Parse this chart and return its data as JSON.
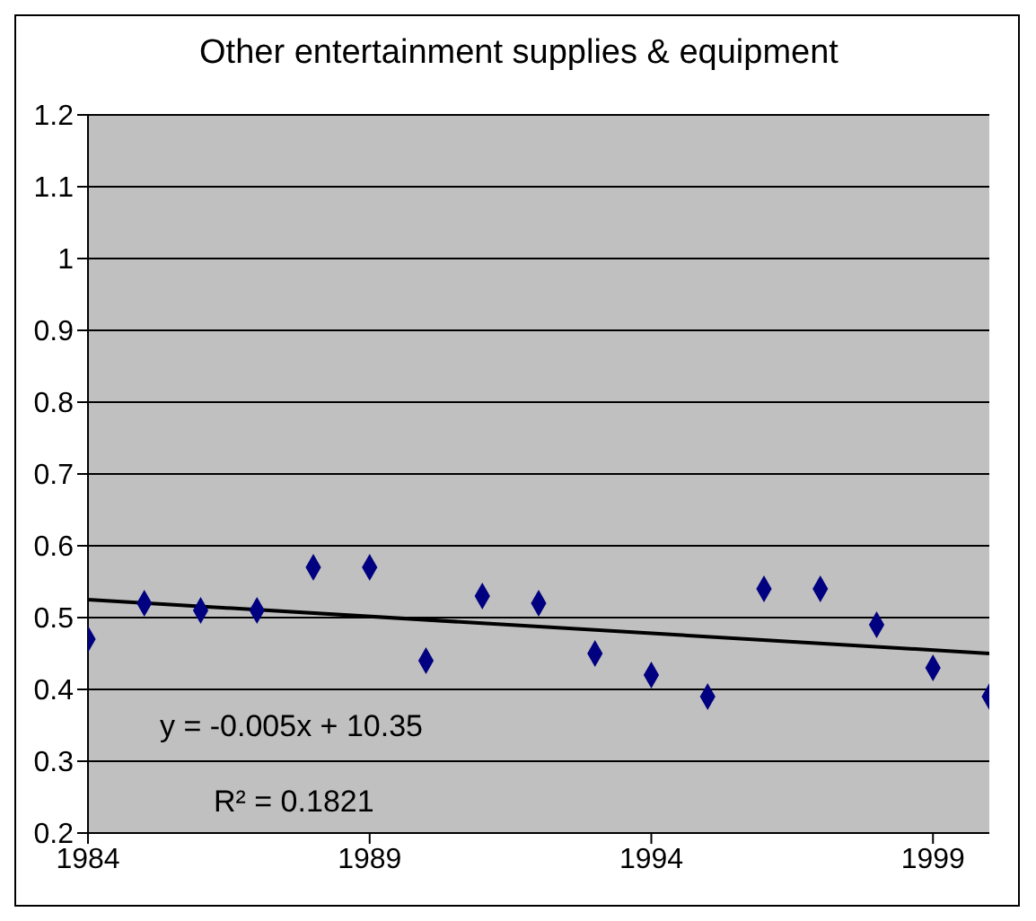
{
  "chart_data": {
    "type": "scatter",
    "title": "Other entertainment supplies & equipment",
    "x": [
      1984,
      1985,
      1986,
      1987,
      1988,
      1989,
      1990,
      1991,
      1992,
      1993,
      1994,
      1995,
      1996,
      1997,
      1998,
      1999,
      2000
    ],
    "series": [
      {
        "color": "#000080",
        "marker": "diamond",
        "values": [
          0.47,
          0.52,
          0.51,
          0.51,
          0.57,
          0.57,
          0.44,
          0.53,
          0.52,
          0.45,
          0.42,
          0.39,
          0.54,
          0.54,
          0.49,
          0.43,
          0.39
        ]
      },
      {
        "type": "line",
        "color": "#000000",
        "marker": "none",
        "x": [
          1984,
          2000
        ],
        "values": [
          0.525,
          0.45
        ]
      }
    ],
    "xlim": [
      1984,
      2000
    ],
    "xticks": [
      1984,
      1989,
      1994,
      1999
    ],
    "ylim": [
      0.2,
      1.2
    ],
    "yticks": [
      0.2,
      0.3,
      0.4,
      0.5,
      0.6,
      0.7,
      0.8,
      0.9,
      1,
      1.1,
      1.2
    ],
    "grid": "y",
    "annotations": [
      "y = -0.005x + 10.35",
      "R² = 0.1821"
    ]
  }
}
